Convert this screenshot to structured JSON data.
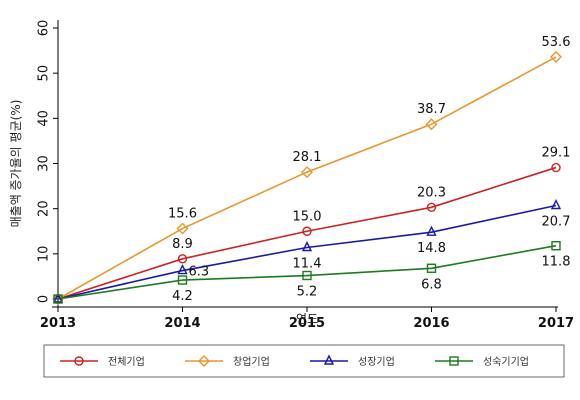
{
  "chart_data": {
    "type": "line",
    "title": "",
    "xlabel": "연도",
    "ylabel": "매출액 증가율의 평균(%)",
    "x": [
      "2013",
      "2014",
      "2015",
      "2016",
      "2017"
    ],
    "ylim": [
      0,
      60
    ],
    "yticks": [
      "0",
      "10",
      "20",
      "30",
      "40",
      "50",
      "60"
    ],
    "grid": false,
    "legend_position": "bottom",
    "series": [
      {
        "name": "전체기업",
        "values": [
          0,
          8.9,
          15.0,
          20.3,
          29.1
        ],
        "labels": [
          "",
          "8.9",
          "15.0",
          "20.3",
          "29.1"
        ],
        "label_pos": [
          "above",
          "above",
          "above",
          "above",
          "above"
        ],
        "color": "#cc2222",
        "marker": "circle"
      },
      {
        "name": "창업기업",
        "values": [
          0,
          15.6,
          28.1,
          38.7,
          53.6
        ],
        "labels": [
          "",
          "15.6",
          "28.1",
          "38.7",
          "53.6"
        ],
        "label_pos": [
          "above",
          "above",
          "above",
          "above",
          "above"
        ],
        "color": "#e8962e",
        "marker": "diamond"
      },
      {
        "name": "성장기업",
        "values": [
          0,
          6.3,
          11.4,
          14.8,
          20.7
        ],
        "labels": [
          "",
          "6.3",
          "11.4",
          "14.8",
          "20.7"
        ],
        "label_pos": [
          "right",
          "right",
          "below",
          "below",
          "below"
        ],
        "color": "#1a1aaa",
        "marker": "triangle"
      },
      {
        "name": "성숙기기업",
        "values": [
          0,
          4.2,
          5.2,
          6.8,
          11.8
        ],
        "labels": [
          "",
          "4.2",
          "5.2",
          "6.8",
          "11.8"
        ],
        "label_pos": [
          "below",
          "below",
          "below",
          "below",
          "below"
        ],
        "color": "#1e7a1e",
        "marker": "square"
      }
    ]
  }
}
